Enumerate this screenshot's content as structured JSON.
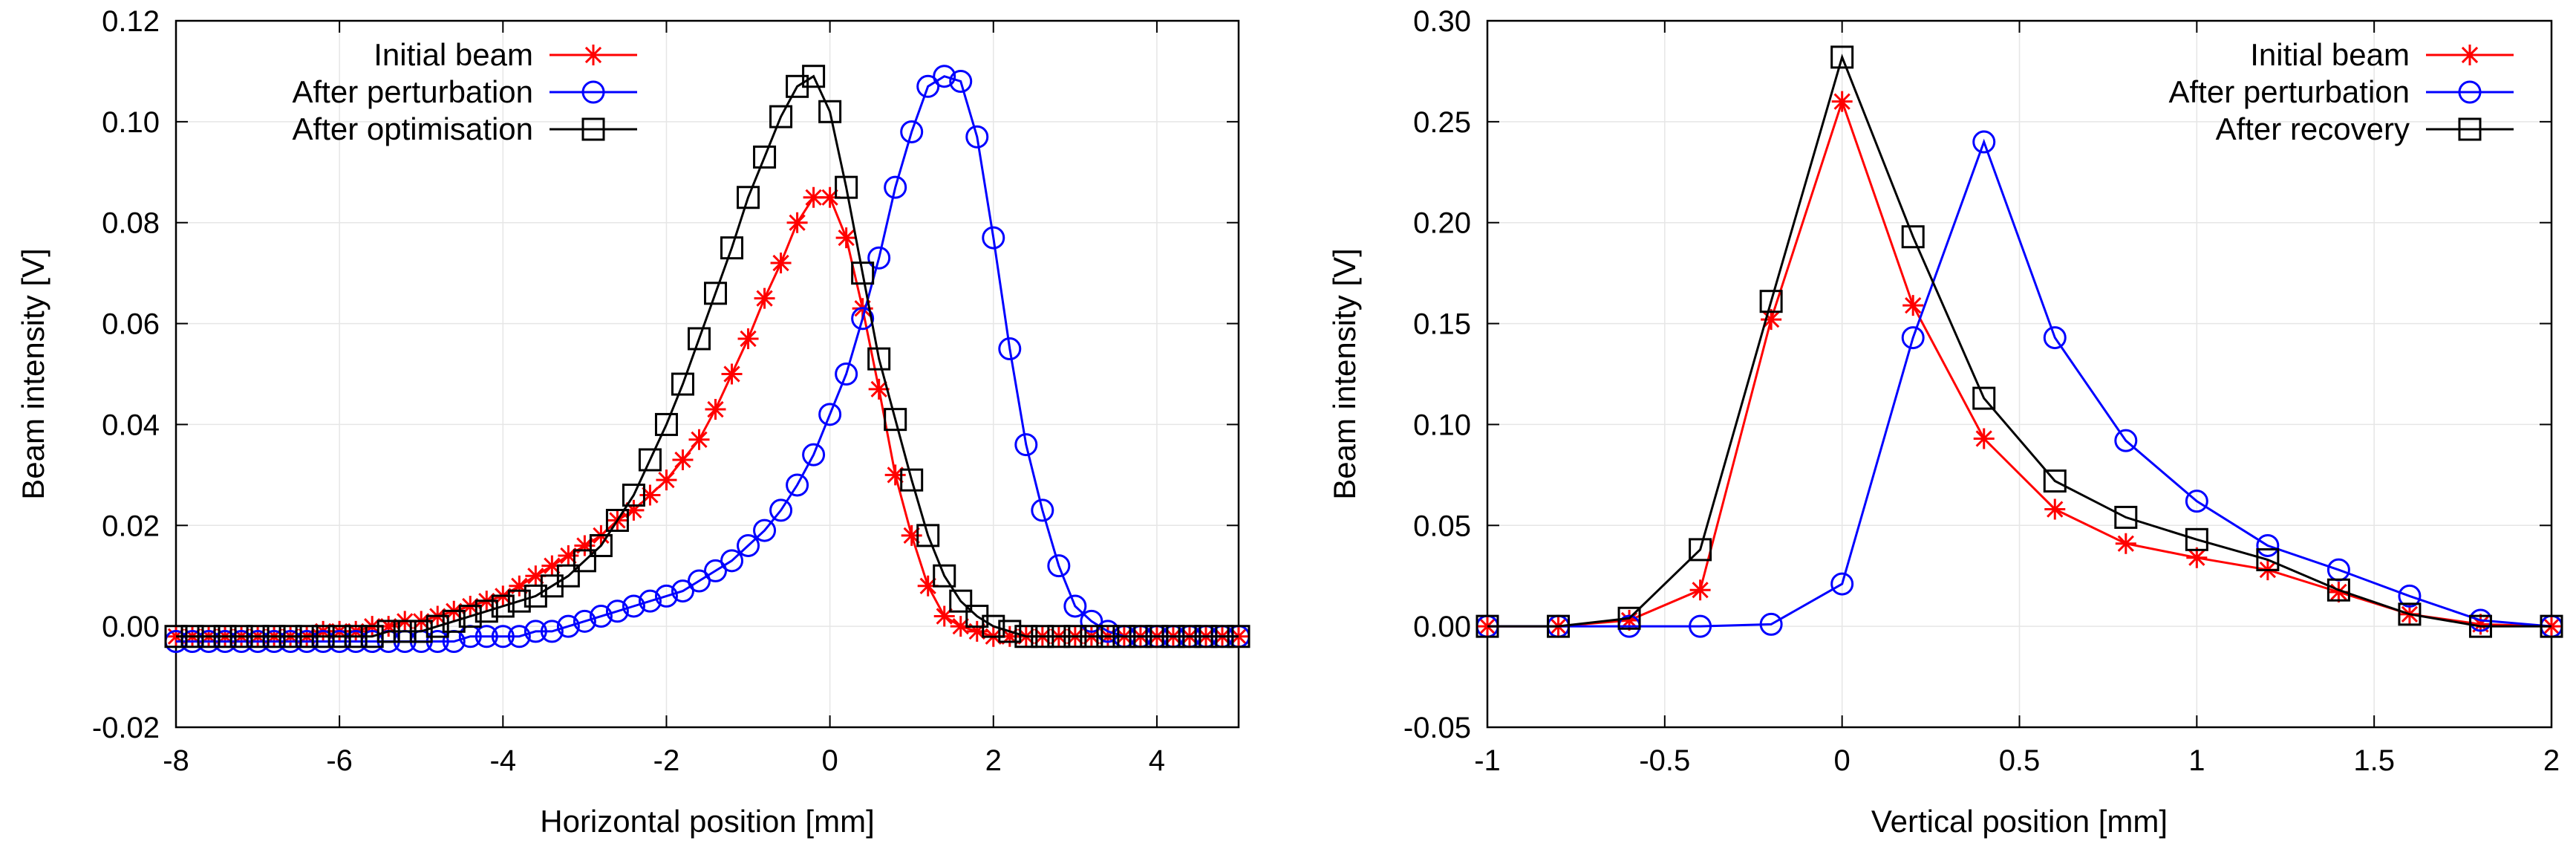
{
  "chart_data": [
    {
      "id": "horizontal",
      "type": "line",
      "xlabel": "Horizontal position [mm]",
      "ylabel": "Beam intensity [V]",
      "xlim": [
        -8,
        5
      ],
      "ylim": [
        -0.02,
        0.12
      ],
      "grid": true,
      "legend_position": "top-left",
      "x_ticks": [
        -8,
        -6,
        -4,
        -2,
        0,
        2,
        4
      ],
      "x_tick_labels": [
        "-8",
        "-6",
        "-4",
        "-2",
        "0",
        "2",
        "4"
      ],
      "y_ticks": [
        -0.02,
        0,
        0.02,
        0.04,
        0.06,
        0.08,
        0.1,
        0.12
      ],
      "y_tick_labels": [
        "-0.02",
        "0.00",
        "0.02",
        "0.04",
        "0.06",
        "0.08",
        "0.10",
        "0.12"
      ],
      "series": [
        {
          "name": "Initial beam",
          "color": "#ff0000",
          "marker": "star",
          "x": [
            -8,
            -7.8,
            -7.6,
            -7.4,
            -7.2,
            -7,
            -6.8,
            -6.6,
            -6.4,
            -6.2,
            -6,
            -5.8,
            -5.6,
            -5.4,
            -5.2,
            -5,
            -4.8,
            -4.6,
            -4.4,
            -4.2,
            -4,
            -3.8,
            -3.6,
            -3.4,
            -3.2,
            -3,
            -2.8,
            -2.6,
            -2.4,
            -2.2,
            -2,
            -1.8,
            -1.6,
            -1.4,
            -1.2,
            -1,
            -0.8,
            -0.6,
            -0.4,
            -0.2,
            0,
            0.2,
            0.4,
            0.6,
            0.8,
            1,
            1.2,
            1.4,
            1.6,
            1.8,
            2,
            2.2,
            2.4,
            2.6,
            2.8,
            3,
            3.2,
            3.4,
            3.6,
            3.8,
            4,
            4.2,
            4.4,
            4.6,
            4.8,
            5
          ],
          "y": [
            -0.002,
            -0.002,
            -0.002,
            -0.002,
            -0.002,
            -0.002,
            -0.002,
            -0.002,
            -0.002,
            -0.001,
            -0.001,
            -0.001,
            0,
            0,
            0.001,
            0.001,
            0.002,
            0.003,
            0.004,
            0.005,
            0.006,
            0.008,
            0.01,
            0.012,
            0.014,
            0.016,
            0.018,
            0.021,
            0.023,
            0.026,
            0.029,
            0.033,
            0.037,
            0.043,
            0.05,
            0.057,
            0.065,
            0.072,
            0.08,
            0.085,
            0.085,
            0.077,
            0.063,
            0.047,
            0.03,
            0.018,
            0.008,
            0.002,
            0,
            -0.001,
            -0.002,
            -0.002,
            -0.002,
            -0.002,
            -0.002,
            -0.002,
            -0.002,
            -0.002,
            -0.002,
            -0.002,
            -0.002,
            -0.002,
            -0.002,
            -0.002,
            -0.002,
            -0.002
          ]
        },
        {
          "name": "After perturbation",
          "color": "#0000ff",
          "marker": "circle",
          "x": [
            -8,
            -7.8,
            -7.6,
            -7.4,
            -7.2,
            -7,
            -6.8,
            -6.6,
            -6.4,
            -6.2,
            -6,
            -5.8,
            -5.6,
            -5.4,
            -5.2,
            -5,
            -4.8,
            -4.6,
            -4.4,
            -4.2,
            -4,
            -3.8,
            -3.6,
            -3.4,
            -3.2,
            -3,
            -2.8,
            -2.6,
            -2.4,
            -2.2,
            -2,
            -1.8,
            -1.6,
            -1.4,
            -1.2,
            -1,
            -0.8,
            -0.6,
            -0.4,
            -0.2,
            0,
            0.2,
            0.4,
            0.6,
            0.8,
            1,
            1.2,
            1.4,
            1.6,
            1.8,
            2,
            2.2,
            2.4,
            2.6,
            2.8,
            3,
            3.2,
            3.4,
            3.6,
            3.8,
            4,
            4.2,
            4.4,
            4.6,
            4.8,
            5
          ],
          "y": [
            -0.003,
            -0.003,
            -0.003,
            -0.003,
            -0.003,
            -0.003,
            -0.003,
            -0.003,
            -0.003,
            -0.003,
            -0.003,
            -0.003,
            -0.003,
            -0.003,
            -0.003,
            -0.003,
            -0.003,
            -0.003,
            -0.002,
            -0.002,
            -0.002,
            -0.002,
            -0.001,
            -0.001,
            0,
            0.001,
            0.002,
            0.003,
            0.004,
            0.005,
            0.006,
            0.007,
            0.009,
            0.011,
            0.013,
            0.016,
            0.019,
            0.023,
            0.028,
            0.034,
            0.042,
            0.05,
            0.061,
            0.073,
            0.087,
            0.098,
            0.107,
            0.109,
            0.108,
            0.097,
            0.077,
            0.055,
            0.036,
            0.023,
            0.012,
            0.004,
            0.001,
            -0.001,
            -0.002,
            -0.002,
            -0.002,
            -0.002,
            -0.002,
            -0.002,
            -0.002,
            -0.002
          ]
        },
        {
          "name": "After optimisation",
          "color": "#000000",
          "marker": "square",
          "x": [
            -8,
            -7.8,
            -7.6,
            -7.4,
            -7.2,
            -7,
            -6.8,
            -6.6,
            -6.4,
            -6.2,
            -6,
            -5.8,
            -5.6,
            -5.4,
            -5.2,
            -5,
            -4.8,
            -4.6,
            -4.4,
            -4.2,
            -4,
            -3.8,
            -3.6,
            -3.4,
            -3.2,
            -3,
            -2.8,
            -2.6,
            -2.4,
            -2.2,
            -2,
            -1.8,
            -1.6,
            -1.4,
            -1.2,
            -1,
            -0.8,
            -0.6,
            -0.4,
            -0.2,
            0,
            0.2,
            0.4,
            0.6,
            0.8,
            1,
            1.2,
            1.4,
            1.6,
            1.8,
            2,
            2.2,
            2.4,
            2.6,
            2.8,
            3,
            3.2,
            3.4,
            3.6,
            3.8,
            4,
            4.2,
            4.4,
            4.6,
            4.8,
            5
          ],
          "y": [
            -0.002,
            -0.002,
            -0.002,
            -0.002,
            -0.002,
            -0.002,
            -0.002,
            -0.002,
            -0.002,
            -0.002,
            -0.002,
            -0.002,
            -0.002,
            -0.001,
            -0.001,
            -0.001,
            0,
            0.001,
            0.002,
            0.003,
            0.004,
            0.005,
            0.006,
            0.008,
            0.01,
            0.013,
            0.016,
            0.021,
            0.026,
            0.033,
            0.04,
            0.048,
            0.057,
            0.066,
            0.075,
            0.085,
            0.093,
            0.101,
            0.107,
            0.109,
            0.102,
            0.087,
            0.07,
            0.053,
            0.041,
            0.029,
            0.018,
            0.01,
            0.005,
            0.002,
            0,
            -0.001,
            -0.002,
            -0.002,
            -0.002,
            -0.002,
            -0.002,
            -0.002,
            -0.002,
            -0.002,
            -0.002,
            -0.002,
            -0.002,
            -0.002,
            -0.002,
            -0.002
          ]
        }
      ]
    },
    {
      "id": "vertical",
      "type": "line",
      "xlabel": "Vertical position [mm]",
      "ylabel": "Beam intensity [V]",
      "xlim": [
        -1,
        2
      ],
      "ylim": [
        -0.05,
        0.3
      ],
      "grid": true,
      "legend_position": "top-right",
      "x_ticks": [
        -1,
        -0.5,
        0,
        0.5,
        1,
        1.5,
        2
      ],
      "x_tick_labels": [
        "-1",
        "-0.5",
        "0",
        "0.5",
        "1",
        "1.5",
        "2"
      ],
      "y_ticks": [
        -0.05,
        0,
        0.05,
        0.1,
        0.15,
        0.2,
        0.25,
        0.3
      ],
      "y_tick_labels": [
        "-0.05",
        "0.00",
        "0.05",
        "0.10",
        "0.15",
        "0.20",
        "0.25",
        "0.30"
      ],
      "series": [
        {
          "name": "Initial beam",
          "color": "#ff0000",
          "marker": "star",
          "x": [
            -1,
            -0.8,
            -0.6,
            -0.4,
            -0.2,
            0,
            0.2,
            0.4,
            0.6,
            0.8,
            1,
            1.2,
            1.4,
            1.6,
            1.8,
            2
          ],
          "y": [
            0,
            0,
            0.003,
            0.018,
            0.152,
            0.26,
            0.159,
            0.093,
            0.058,
            0.041,
            0.034,
            0.028,
            0.017,
            0.006,
            0.001,
            0
          ]
        },
        {
          "name": "After perturbation",
          "color": "#0000ff",
          "marker": "circle",
          "x": [
            -1,
            -0.8,
            -0.6,
            -0.4,
            -0.2,
            0,
            0.2,
            0.4,
            0.6,
            0.8,
            1,
            1.2,
            1.4,
            1.6,
            1.8,
            2
          ],
          "y": [
            0,
            0,
            0,
            0,
            0.001,
            0.021,
            0.143,
            0.24,
            0.143,
            0.092,
            0.062,
            0.04,
            0.028,
            0.015,
            0.003,
            0
          ]
        },
        {
          "name": "After recovery",
          "color": "#000000",
          "marker": "square",
          "x": [
            -1,
            -0.8,
            -0.6,
            -0.4,
            -0.2,
            0,
            0.2,
            0.4,
            0.6,
            0.8,
            1,
            1.2,
            1.4,
            1.6,
            1.8,
            2
          ],
          "y": [
            0,
            0,
            0.004,
            0.038,
            0.161,
            0.282,
            0.193,
            0.113,
            0.072,
            0.054,
            0.043,
            0.033,
            0.018,
            0.006,
            0,
            0
          ]
        }
      ]
    }
  ]
}
